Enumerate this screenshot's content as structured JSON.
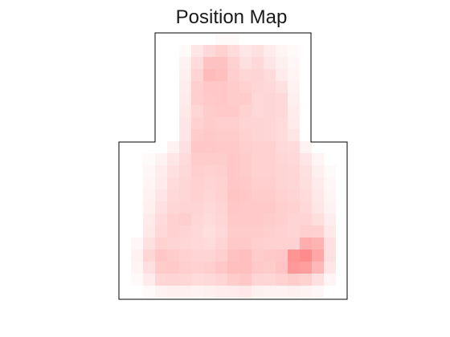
{
  "chart_data": {
    "type": "heatmap",
    "title": "Position Map",
    "xlabel": "",
    "ylabel": "",
    "grid": false,
    "colormap": {
      "low": "#ffffff",
      "high": "#ff0000"
    },
    "value_range": [
      0,
      1
    ],
    "outline_color": "#000000",
    "n_cols": 19,
    "n_rows": 22,
    "arena_shape": "inverted-T (narrow upper arm on a wider lower body)",
    "cells": [
      [
        0.0,
        0.0,
        0.0,
        0.0,
        0.0,
        0.0,
        0.0,
        0.0,
        0.02,
        0.02,
        0.0,
        0.0,
        0.0,
        0.0,
        0.0,
        0.0,
        0.0,
        0.0,
        0.0
      ],
      [
        0.0,
        0.0,
        0.0,
        0.0,
        0.0,
        0.02,
        0.1,
        0.15,
        0.18,
        0.14,
        0.1,
        0.12,
        0.08,
        0.04,
        0.02,
        0.0,
        0.0,
        0.0,
        0.0
      ],
      [
        0.0,
        0.0,
        0.0,
        0.0,
        0.0,
        0.05,
        0.14,
        0.24,
        0.24,
        0.18,
        0.12,
        0.15,
        0.1,
        0.06,
        0.03,
        0.0,
        0.0,
        0.0,
        0.0
      ],
      [
        0.0,
        0.0,
        0.0,
        0.0,
        0.0,
        0.06,
        0.17,
        0.27,
        0.25,
        0.19,
        0.16,
        0.17,
        0.14,
        0.08,
        0.04,
        0.0,
        0.0,
        0.0,
        0.0
      ],
      [
        0.0,
        0.0,
        0.0,
        0.0,
        0.0,
        0.07,
        0.19,
        0.22,
        0.22,
        0.2,
        0.18,
        0.16,
        0.15,
        0.12,
        0.05,
        0.0,
        0.0,
        0.0,
        0.0
      ],
      [
        0.0,
        0.0,
        0.0,
        0.0,
        0.0,
        0.08,
        0.19,
        0.21,
        0.22,
        0.2,
        0.2,
        0.15,
        0.16,
        0.15,
        0.06,
        0.0,
        0.0,
        0.0,
        0.0
      ],
      [
        0.0,
        0.0,
        0.0,
        0.0,
        0.0,
        0.09,
        0.16,
        0.2,
        0.21,
        0.21,
        0.18,
        0.15,
        0.16,
        0.15,
        0.07,
        0.0,
        0.0,
        0.0,
        0.0
      ],
      [
        0.0,
        0.0,
        0.0,
        0.0,
        0.0,
        0.1,
        0.18,
        0.2,
        0.19,
        0.19,
        0.17,
        0.17,
        0.16,
        0.14,
        0.08,
        0.0,
        0.0,
        0.0,
        0.0
      ],
      [
        0.0,
        0.0,
        0.0,
        0.0,
        0.0,
        0.1,
        0.2,
        0.21,
        0.2,
        0.2,
        0.18,
        0.17,
        0.16,
        0.14,
        0.1,
        0.0,
        0.0,
        0.0,
        0.0
      ],
      [
        0.0,
        0.0,
        0.0,
        0.0,
        0.05,
        0.12,
        0.22,
        0.22,
        0.21,
        0.21,
        0.19,
        0.18,
        0.18,
        0.15,
        0.14,
        0.05,
        0.0,
        0.0,
        0.0
      ],
      [
        0.0,
        0.0,
        0.02,
        0.05,
        0.1,
        0.14,
        0.2,
        0.2,
        0.2,
        0.22,
        0.2,
        0.18,
        0.18,
        0.16,
        0.15,
        0.1,
        0.04,
        0.0,
        0.0
      ],
      [
        0.0,
        0.0,
        0.03,
        0.07,
        0.12,
        0.15,
        0.19,
        0.18,
        0.19,
        0.22,
        0.2,
        0.18,
        0.18,
        0.17,
        0.16,
        0.12,
        0.06,
        0.02,
        0.0
      ],
      [
        0.0,
        0.0,
        0.04,
        0.08,
        0.14,
        0.16,
        0.18,
        0.17,
        0.18,
        0.22,
        0.21,
        0.19,
        0.19,
        0.17,
        0.16,
        0.13,
        0.08,
        0.03,
        0.0
      ],
      [
        0.0,
        0.0,
        0.05,
        0.1,
        0.15,
        0.16,
        0.18,
        0.16,
        0.18,
        0.23,
        0.22,
        0.2,
        0.2,
        0.18,
        0.17,
        0.14,
        0.09,
        0.04,
        0.0
      ],
      [
        0.0,
        0.0,
        0.06,
        0.12,
        0.16,
        0.17,
        0.17,
        0.15,
        0.17,
        0.22,
        0.21,
        0.21,
        0.21,
        0.19,
        0.18,
        0.15,
        0.1,
        0.05,
        0.0
      ],
      [
        0.0,
        0.0,
        0.08,
        0.14,
        0.18,
        0.19,
        0.16,
        0.14,
        0.16,
        0.21,
        0.21,
        0.21,
        0.2,
        0.19,
        0.17,
        0.17,
        0.13,
        0.07,
        0.0
      ],
      [
        0.0,
        0.0,
        0.09,
        0.15,
        0.18,
        0.17,
        0.15,
        0.13,
        0.15,
        0.2,
        0.2,
        0.2,
        0.19,
        0.18,
        0.17,
        0.19,
        0.18,
        0.09,
        0.0
      ],
      [
        0.0,
        0.03,
        0.12,
        0.18,
        0.17,
        0.16,
        0.15,
        0.14,
        0.17,
        0.21,
        0.21,
        0.19,
        0.18,
        0.18,
        0.18,
        0.32,
        0.3,
        0.12,
        0.0
      ],
      [
        0.0,
        0.05,
        0.16,
        0.22,
        0.2,
        0.18,
        0.17,
        0.17,
        0.19,
        0.24,
        0.25,
        0.2,
        0.21,
        0.22,
        0.42,
        0.45,
        0.35,
        0.12,
        0.0
      ],
      [
        0.0,
        0.04,
        0.12,
        0.2,
        0.21,
        0.19,
        0.18,
        0.19,
        0.22,
        0.25,
        0.25,
        0.21,
        0.2,
        0.23,
        0.4,
        0.38,
        0.28,
        0.1,
        0.0
      ],
      [
        0.0,
        0.02,
        0.08,
        0.16,
        0.17,
        0.16,
        0.14,
        0.15,
        0.17,
        0.2,
        0.22,
        0.17,
        0.16,
        0.18,
        0.2,
        0.18,
        0.12,
        0.04,
        0.0
      ],
      [
        0.0,
        0.0,
        0.02,
        0.05,
        0.06,
        0.06,
        0.05,
        0.06,
        0.07,
        0.08,
        0.09,
        0.06,
        0.05,
        0.05,
        0.06,
        0.05,
        0.03,
        0.0,
        0.0
      ]
    ]
  }
}
